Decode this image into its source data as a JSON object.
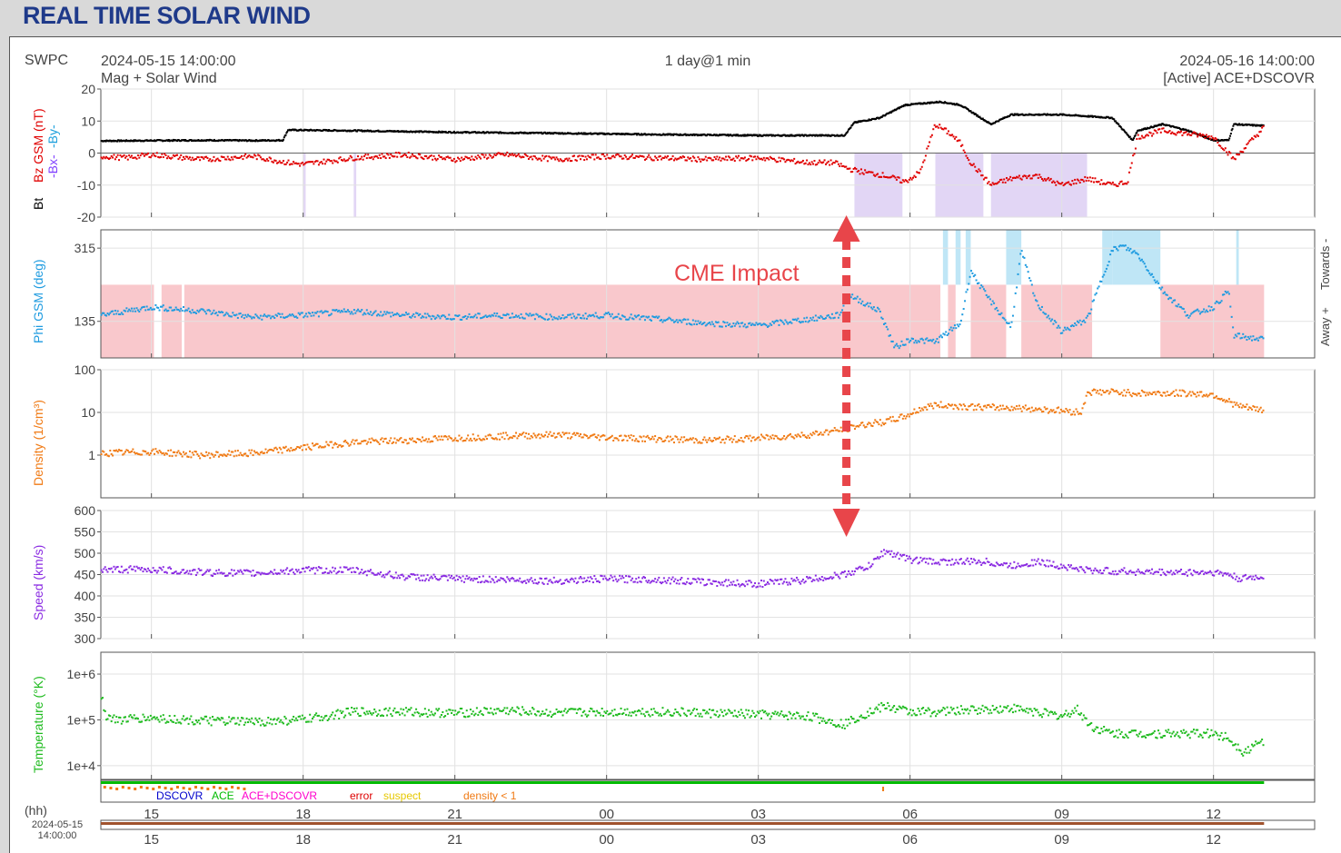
{
  "page": {
    "title": "REAL TIME SOLAR WIND"
  },
  "header": {
    "source": "SWPC",
    "start_time": "2024-05-15 14:00:00",
    "product": "Mag + Solar Wind",
    "span": "1 day@1 min",
    "end_time": "2024-05-16 14:00:00",
    "status": "[Active] ACE+DSCOVR"
  },
  "annotation": {
    "text": "CME Impact",
    "time_hours": 14.75,
    "color": "#e8454a"
  },
  "colors": {
    "bt": "#000000",
    "bz": "#e00000",
    "by": "#1ea0dc",
    "bx": "#8040ff",
    "bz_shade": "#e2d6f5",
    "phi": "#1e9be0",
    "phi_away": "#f9c8cc",
    "phi_toward": "#bfe6f6",
    "density": "#f07a14",
    "speed": "#8a2be2",
    "temperature": "#1fbb1f",
    "src_dscovr": "#0000cc",
    "src_ace": "#00bb00",
    "src_both": "#ff00cc",
    "error": "#dd0000",
    "suspect": "#e6c800",
    "density_lt1": "#f07a14"
  },
  "time_axis": {
    "hours_label": "(hh)",
    "ticks": [
      "15",
      "18",
      "21",
      "00",
      "03",
      "06",
      "09",
      "12"
    ],
    "tick_hours": [
      1,
      4,
      7,
      10,
      13,
      16,
      19,
      22
    ],
    "range_hours": [
      0,
      24
    ],
    "date_label": "2024-05-15",
    "time_label": "14:00:00"
  },
  "legend": {
    "dscovr": "DSCOVR",
    "ace": "ACE",
    "both": "ACE+DSCOVR",
    "error": "error",
    "suspect": "suspect",
    "density": "density < 1"
  },
  "panels": {
    "mag": {
      "labels": {
        "bt": "Bt",
        "bz": "Bz GSM (nT)",
        "bx": "-Bx-",
        "by": "-By-"
      },
      "ylim": [
        -20,
        20
      ],
      "ticks": [
        "20",
        "10",
        "0",
        "-10",
        "-20"
      ],
      "tick_values": [
        20,
        10,
        0,
        -10,
        -20
      ]
    },
    "phi": {
      "label": "Phi GSM (deg)",
      "ylim": [
        45,
        360
      ],
      "ticks": [
        "315",
        "135"
      ],
      "tick_values": [
        315,
        135
      ],
      "right_label_toward": "Towards -",
      "right_label_away": "Away +"
    },
    "density": {
      "label": "Density (1/cm³)",
      "scale": "log",
      "ylim": [
        0.1,
        100
      ],
      "ticks": [
        "100",
        "10",
        "1"
      ],
      "tick_values": [
        100,
        10,
        1
      ]
    },
    "speed": {
      "label": "Speed (km/s)",
      "ylim": [
        300,
        600
      ],
      "ticks": [
        "600",
        "550",
        "500",
        "450",
        "400",
        "350",
        "300"
      ],
      "tick_values": [
        600,
        550,
        500,
        450,
        400,
        350,
        300
      ]
    },
    "temperature": {
      "label": "Temperature (°K)",
      "scale": "log",
      "ylim": [
        5000,
        3000000
      ],
      "ticks": [
        "1e+6",
        "1e+5",
        "1e+4"
      ],
      "tick_values": [
        1000000,
        100000,
        10000
      ]
    }
  },
  "chart_data": {
    "type": "scatter",
    "x_unit": "hours after 2024-05-15 14:00 UTC",
    "xlim": [
      0,
      24
    ],
    "series": [
      {
        "key": "bt",
        "name": "Bt",
        "x": [
          0,
          1,
          2,
          3,
          3.6,
          3.7,
          5,
          7,
          9,
          11,
          13,
          14.7,
          14.9,
          15.4,
          15.9,
          16.6,
          17,
          17.6,
          18,
          19,
          20,
          20.4,
          20.5,
          21,
          21.5,
          22,
          22.3,
          22.4,
          23
        ],
        "y": [
          3.8,
          3.9,
          4,
          3.9,
          4,
          7.2,
          7,
          6.5,
          6.2,
          5.8,
          5.5,
          5.5,
          9.5,
          11,
          15,
          16,
          15,
          9,
          12,
          12,
          11,
          4,
          7,
          9,
          7,
          4,
          4,
          9,
          8.5
        ]
      },
      {
        "key": "bz",
        "name": "Bz GSM",
        "x": [
          0,
          0.5,
          1,
          2,
          3,
          3.7,
          4,
          5,
          6,
          7,
          8,
          9,
          10,
          11,
          12,
          13,
          14,
          14.5,
          14.8,
          15.1,
          15.5,
          15.9,
          16.2,
          16.5,
          16.8,
          17.0,
          17.2,
          17.6,
          18,
          18.5,
          19,
          19.5,
          20,
          20.3,
          20.5,
          21,
          21.5,
          22,
          22.3,
          22.4,
          23
        ],
        "y": [
          -1,
          -1.5,
          -0.5,
          -2,
          -1,
          -3,
          -3.5,
          -1.5,
          -0.5,
          -2,
          -0.5,
          -2,
          -1,
          -1.5,
          -2,
          -1.5,
          -3,
          -3,
          -5,
          -6,
          -7,
          -9,
          -6,
          9,
          6,
          3,
          -3,
          -10,
          -8,
          -7,
          -10,
          -8,
          -10,
          -9,
          5,
          7,
          6,
          5,
          0,
          -2,
          8
        ]
      },
      {
        "key": "phi",
        "name": "Phi GSM",
        "x": [
          0,
          1,
          2,
          3,
          4,
          5,
          6,
          7,
          8,
          9,
          10,
          11,
          12,
          13,
          14,
          14.6,
          14.8,
          15.4,
          15.7,
          16,
          16.5,
          17,
          17.2,
          17.5,
          18,
          18.2,
          18.5,
          19,
          19.5,
          20,
          20.2,
          20.5,
          21,
          21.5,
          22,
          22.3,
          22.4,
          23
        ],
        "y": [
          150,
          170,
          160,
          145,
          150,
          160,
          150,
          145,
          150,
          145,
          150,
          140,
          130,
          125,
          140,
          150,
          200,
          160,
          70,
          90,
          85,
          130,
          260,
          200,
          120,
          310,
          180,
          110,
          140,
          310,
          320,
          300,
          210,
          150,
          170,
          210,
          100,
          90
        ]
      },
      {
        "key": "density",
        "name": "Density",
        "x": [
          0,
          1,
          2,
          3,
          4,
          5,
          6,
          7,
          8,
          9,
          10,
          11,
          12,
          13,
          14,
          14.7,
          15,
          15.5,
          15.9,
          16.2,
          16.5,
          17,
          17.5,
          18,
          18.5,
          19,
          19.4,
          19.5,
          20,
          20.5,
          21,
          21.5,
          22,
          22.5,
          23
        ],
        "y": [
          1.1,
          1.2,
          1,
          1.1,
          1.5,
          2,
          2.2,
          2.5,
          2.8,
          3,
          2.6,
          2.4,
          2.2,
          2.5,
          3,
          4,
          5,
          6,
          8,
          12,
          15,
          14,
          13,
          13,
          12,
          11,
          10,
          30,
          30,
          28,
          28,
          28,
          26,
          14,
          11
        ]
      },
      {
        "key": "speed",
        "name": "Speed",
        "x": [
          0,
          1,
          2,
          3,
          4,
          5,
          6,
          7,
          8,
          9,
          10,
          11,
          12,
          13,
          14,
          14.7,
          15.2,
          15.5,
          16,
          16.5,
          17,
          17.5,
          18,
          18.5,
          19,
          19.5,
          20,
          21,
          22,
          22.3,
          22.5,
          23
        ],
        "y": [
          462,
          462,
          455,
          453,
          460,
          460,
          445,
          440,
          438,
          435,
          440,
          438,
          432,
          428,
          438,
          450,
          470,
          505,
          485,
          480,
          480,
          480,
          470,
          480,
          470,
          460,
          458,
          455,
          455,
          450,
          440,
          445
        ]
      },
      {
        "key": "temperature",
        "name": "Temperature",
        "x": [
          0,
          0.1,
          0.3,
          1,
          2,
          3,
          4,
          5,
          6,
          7,
          8,
          9,
          10,
          11,
          12,
          13,
          14,
          14.7,
          15,
          15.5,
          16,
          16.5,
          17,
          17.5,
          18,
          18.5,
          19,
          19.3,
          19.6,
          20,
          21,
          22,
          22.3,
          22.6,
          23
        ],
        "y": [
          400000,
          120000,
          100000,
          110000,
          95000,
          90000,
          100000,
          150000,
          150000,
          140000,
          160000,
          140000,
          150000,
          150000,
          140000,
          130000,
          120000,
          80000,
          120000,
          200000,
          150000,
          150000,
          160000,
          170000,
          180000,
          150000,
          120000,
          170000,
          70000,
          50000,
          50000,
          50000,
          40000,
          20000,
          35000
        ]
      }
    ],
    "bz_negative_periods": [
      [
        4.0,
        4.05
      ],
      [
        5.0,
        5.05
      ],
      [
        14.9,
        15.85
      ],
      [
        16.5,
        17.45
      ],
      [
        17.6,
        19.5
      ]
    ],
    "phi_toward_periods": [
      [
        16.65,
        16.75
      ],
      [
        16.9,
        17.0
      ],
      [
        17.1,
        17.2
      ],
      [
        17.9,
        18.2
      ],
      [
        19.8,
        20.0
      ],
      [
        20.0,
        20.95
      ],
      [
        22.45,
        22.5
      ]
    ],
    "phi_away_periods": [
      [
        0,
        1.05
      ],
      [
        1.2,
        1.6
      ],
      [
        1.65,
        16.6
      ],
      [
        16.75,
        16.9
      ],
      [
        17.2,
        17.9
      ],
      [
        18.2,
        19.6
      ],
      [
        20.95,
        23.0
      ]
    ]
  }
}
